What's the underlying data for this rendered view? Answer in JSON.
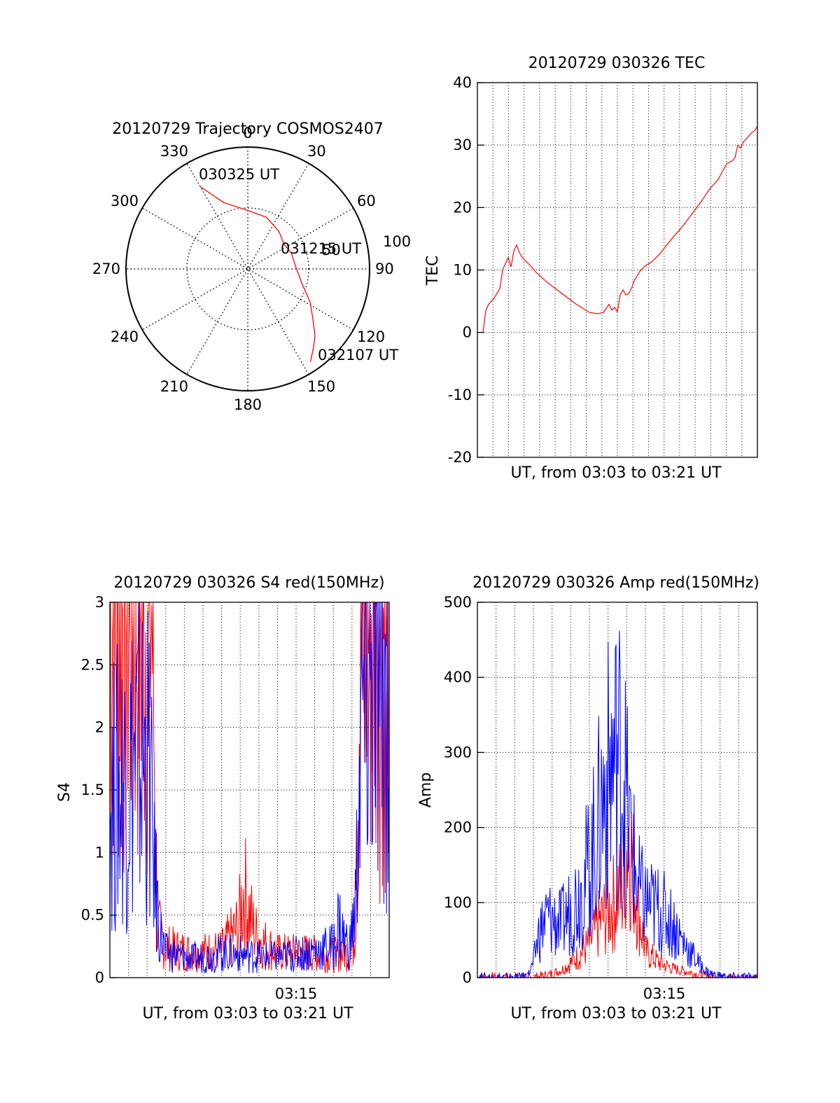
{
  "chart_data": [
    {
      "type": "polar",
      "title": "20120729 Trajectory COSMOS2407",
      "angle_labels": [
        "0",
        "30",
        "60",
        "90",
        "120",
        "150",
        "180",
        "210",
        "240",
        "270",
        "300",
        "330"
      ],
      "radial_labels": [
        "50",
        "100"
      ],
      "rlim": [
        0,
        100
      ],
      "grid": true,
      "series": [
        {
          "color": "#ff0000",
          "points": [
            [
              330,
              78
            ],
            [
              340,
              58
            ],
            [
              0,
              48
            ],
            [
              20,
              45
            ],
            [
              40,
              40
            ],
            [
              55,
              36
            ],
            [
              70,
              38
            ],
            [
              90,
              40
            ],
            [
              105,
              46
            ],
            [
              118,
              58
            ],
            [
              128,
              68
            ],
            [
              135,
              78
            ],
            [
              140,
              84
            ],
            [
              146,
              92
            ]
          ]
        }
      ],
      "annotations": [
        "030325 UT",
        "031215 UT",
        "032107 UT"
      ]
    },
    {
      "type": "line",
      "title": "20120729 030326 TEC",
      "xlabel": "UT, from 03:03 to 03:21 UT",
      "ylabel": "TEC",
      "ylim": [
        -20,
        40
      ],
      "yticks": [
        "-20",
        "-10",
        "0",
        "10",
        "20",
        "30",
        "40"
      ],
      "grid": true,
      "series": [
        {
          "color": "#ff0000",
          "x": [
            0.02,
            0.03,
            0.04,
            0.06,
            0.08,
            0.09,
            0.1,
            0.11,
            0.12,
            0.13,
            0.14,
            0.15,
            0.16,
            0.17,
            0.19,
            0.21,
            0.25,
            0.3,
            0.35,
            0.4,
            0.43,
            0.45,
            0.47,
            0.48,
            0.49,
            0.5,
            0.51,
            0.52,
            0.53,
            0.54,
            0.55,
            0.56,
            0.57,
            0.58,
            0.6,
            0.62,
            0.65,
            0.68,
            0.7,
            0.72,
            0.74,
            0.77,
            0.8,
            0.83,
            0.86,
            0.89,
            0.91,
            0.92,
            0.93,
            0.94,
            0.95,
            0.96,
            0.97,
            0.98,
            0.99,
            1.0
          ],
          "y": [
            0,
            3.5,
            4.5,
            5.5,
            7,
            10,
            11,
            12,
            10.5,
            13,
            14,
            12.8,
            12,
            11.5,
            10.7,
            9.6,
            8,
            6.3,
            4.6,
            3.2,
            3,
            3.2,
            4.5,
            3.6,
            4,
            3.3,
            6,
            6.8,
            6,
            6.2,
            7,
            8.3,
            9,
            9.8,
            10.7,
            11.2,
            12.5,
            14.2,
            15.3,
            16.3,
            17.4,
            19.2,
            21,
            23,
            24.5,
            27,
            27.5,
            28,
            30,
            29.5,
            30.5,
            31,
            31.5,
            32,
            32.3,
            33
          ]
        }
      ]
    },
    {
      "type": "line",
      "title": "20120729 030326 S4 red(150MHz)",
      "xlabel": "UT, from 03:03 to 03:21 UT",
      "ylabel": "S4",
      "ylim": [
        0,
        3
      ],
      "yticks": [
        "0",
        "0.5",
        "1",
        "1.5",
        "2",
        "2.5",
        "3"
      ],
      "xticks": [
        "03:15"
      ],
      "grid": true,
      "series": [
        {
          "color": "#ff0000",
          "x": [
            0.0,
            0.15,
            0.17,
            0.2,
            0.3,
            0.4,
            0.46,
            0.48,
            0.5,
            0.52,
            0.55,
            0.6,
            0.7,
            0.8,
            0.86,
            0.87,
            0.88,
            0.89,
            0.9,
            0.92,
            1.0
          ],
          "y": [
            3.0,
            3.0,
            0.4,
            0.24,
            0.2,
            0.22,
            0.4,
            0.7,
            0.5,
            0.35,
            0.28,
            0.2,
            0.2,
            0.18,
            0.2,
            0.25,
            0.6,
            2.0,
            2.6,
            2.9,
            3.0
          ]
        },
        {
          "color": "#0000ff",
          "x": [
            0.0,
            0.05,
            0.1,
            0.14,
            0.16,
            0.18,
            0.2,
            0.3,
            0.4,
            0.5,
            0.6,
            0.7,
            0.8,
            0.82,
            0.84,
            0.86,
            0.88,
            0.9,
            0.93,
            0.96,
            1.0
          ],
          "y": [
            1.4,
            1.6,
            1.8,
            1.7,
            0.8,
            0.35,
            0.2,
            0.15,
            0.2,
            0.18,
            0.16,
            0.2,
            0.25,
            0.45,
            0.3,
            0.25,
            0.6,
            2.0,
            2.3,
            2.2,
            2.1
          ]
        }
      ]
    },
    {
      "type": "line",
      "title": "20120729 030326 Amp red(150MHz)",
      "xlabel": "UT, from 03:03 to 03:21 UT",
      "ylabel": "Amp",
      "ylim": [
        0,
        500
      ],
      "yticks": [
        "0",
        "100",
        "200",
        "300",
        "400",
        "500"
      ],
      "xticks": [
        "03:15"
      ],
      "grid": true,
      "series": [
        {
          "color": "#ff0000",
          "x": [
            0.0,
            0.2,
            0.25,
            0.3,
            0.35,
            0.4,
            0.42,
            0.44,
            0.46,
            0.48,
            0.5,
            0.52,
            0.54,
            0.56,
            0.58,
            0.6,
            0.65,
            0.7,
            0.75,
            0.8,
            0.85,
            1.0
          ],
          "y": [
            0,
            0,
            3,
            10,
            25,
            45,
            60,
            75,
            85,
            95,
            110,
            120,
            200,
            130,
            80,
            35,
            20,
            12,
            8,
            3,
            0,
            0
          ]
        },
        {
          "color": "#0000ff",
          "x": [
            0.0,
            0.15,
            0.18,
            0.2,
            0.22,
            0.25,
            0.28,
            0.3,
            0.33,
            0.36,
            0.4,
            0.42,
            0.44,
            0.46,
            0.48,
            0.5,
            0.52,
            0.54,
            0.56,
            0.58,
            0.6,
            0.62,
            0.65,
            0.68,
            0.7,
            0.73,
            0.76,
            0.78,
            0.8,
            0.82,
            0.85,
            0.88,
            0.9,
            1.0
          ],
          "y": [
            0,
            0,
            2,
            20,
            60,
            80,
            75,
            70,
            90,
            110,
            150,
            180,
            220,
            260,
            280,
            300,
            290,
            200,
            150,
            110,
            100,
            95,
            90,
            80,
            70,
            50,
            35,
            25,
            15,
            8,
            3,
            1,
            0,
            0
          ]
        }
      ]
    }
  ]
}
